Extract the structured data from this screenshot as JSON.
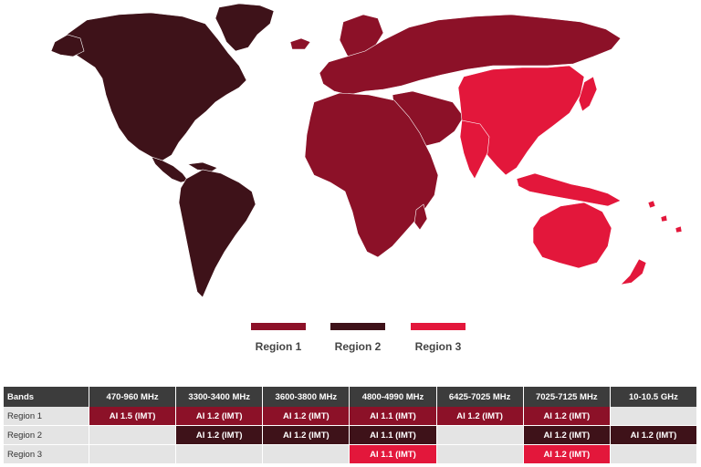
{
  "legend": {
    "items": [
      {
        "label": "Region 1",
        "color": "#8c1128"
      },
      {
        "label": "Region 2",
        "color": "#3e1219"
      },
      {
        "label": "Region 3",
        "color": "#e3173b"
      }
    ]
  },
  "table": {
    "headers": [
      "Bands",
      "470-960 MHz",
      "3300-3400 MHz",
      "3600-3800 MHz",
      "4800-4990 MHz",
      "6425-7025 MHz",
      "7025-7125 MHz",
      "10-10.5 GHz"
    ],
    "rows": [
      {
        "label": "Region 1",
        "region": 1,
        "cells": [
          "AI 1.5 (IMT)",
          "AI 1.2 (IMT)",
          "AI 1.2 (IMT)",
          "AI 1.1 (IMT)",
          "AI 1.2 (IMT)",
          "AI 1.2 (IMT)",
          ""
        ]
      },
      {
        "label": "Region 2",
        "region": 2,
        "cells": [
          "",
          "AI 1.2 (IMT)",
          "AI 1.2 (IMT)",
          "AI 1.1 (IMT)",
          "",
          "AI 1.2 (IMT)",
          "AI 1.2 (IMT)"
        ]
      },
      {
        "label": "Region 3",
        "region": 3,
        "cells": [
          "",
          "",
          "",
          "AI 1.1 (IMT)",
          "",
          "AI 1.2 (IMT)",
          ""
        ]
      }
    ]
  },
  "colors": {
    "region1": "#8c1128",
    "region2": "#3e1219",
    "region3": "#e3173b",
    "header_bg": "#3c3c3c",
    "empty_cell": "#e4e4e4"
  }
}
